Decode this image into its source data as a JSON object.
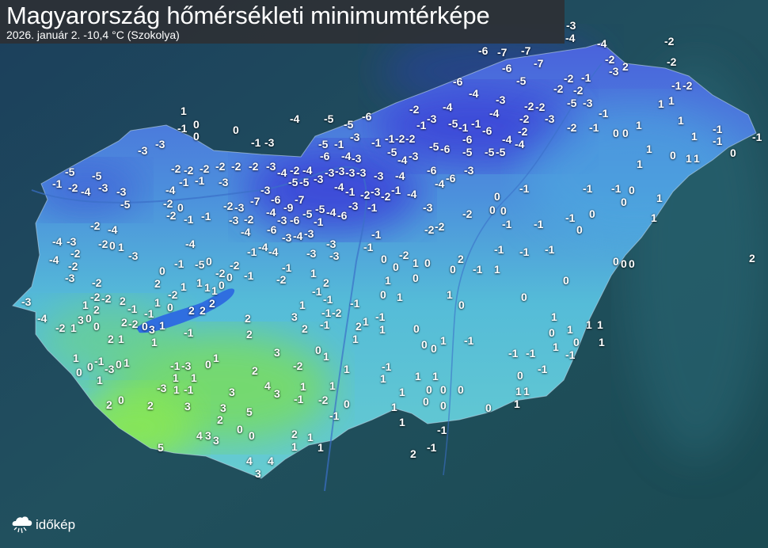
{
  "header": {
    "title": "Magyarország hőmérsékleti minimumtérképe",
    "subtitle": "2026. január 2.  -10,4 °C (Szokolya)"
  },
  "logo": {
    "text": "időkép",
    "icon": "cloud-sun-icon"
  },
  "colors": {
    "background": "#1d4656",
    "cold": "#3f4fd8",
    "mild": "#4fb4d6",
    "warm": "#7fe35a",
    "lake": "#2f6ee0",
    "label": "#ffffff"
  },
  "map": {
    "labels": [
      "-3",
      "-4",
      "-4",
      "-2",
      "-6",
      "-7",
      "-7",
      "-2",
      "-2",
      "-3",
      "2",
      "-6",
      "-7",
      "-6",
      "-5",
      "-2",
      "-1",
      "-2",
      "-2",
      "-2",
      "-1",
      "-4",
      "-3",
      "-5",
      "-3",
      "1",
      "1",
      "-4",
      "-2",
      "-2",
      "-2",
      "-1",
      "-3",
      "-5",
      "-1",
      "-4",
      "-2",
      "-3",
      "-4",
      "-5",
      "-5",
      "-6",
      "1",
      "-1",
      "0",
      "0",
      "0",
      "-1",
      "-3",
      "-3",
      "-3",
      "-5",
      "-5",
      "-1",
      "-2",
      "-4",
      "-3",
      "-3",
      "-5",
      "-2",
      "-2",
      "-2",
      "-2",
      "-2",
      "-2",
      "-3",
      "-1",
      "-1",
      "-3",
      "-4",
      "-2",
      "-2",
      "0",
      "-1",
      "-1",
      "-2",
      "-3",
      "-3",
      "-2",
      "-7",
      "-3",
      "-4",
      "-6",
      "-9",
      "-7",
      "-5",
      "-6",
      "-3",
      "-4",
      "-6",
      "-3",
      "-4",
      "-3",
      "-1",
      "-5",
      "-4",
      "-6",
      "-3",
      "-1",
      "-2",
      "-4",
      "-6",
      "-4",
      "-6",
      "-3",
      "-5",
      "-6",
      "-5",
      "-6",
      "-5",
      "-5",
      "-4",
      "-4",
      "-2",
      "-6",
      "-1",
      "-2",
      "-5",
      "-3",
      "-4",
      "-2",
      "-1",
      "-4",
      "-2",
      "-4",
      "-5",
      "-5",
      "-3",
      "-3",
      "-3",
      "-3",
      "-3",
      "-3",
      "-6",
      "-5",
      "-1",
      "-4",
      "-3",
      "-3",
      "-1",
      "-1",
      "-4",
      "-1",
      "-2",
      "-3",
      "-1",
      "-4",
      "-3",
      "-2",
      "-2",
      "-2",
      "-1",
      "-1",
      "0",
      "-2",
      "1",
      "0",
      "0",
      "2",
      "0",
      "-1",
      "1",
      "1",
      "0",
      "1",
      "0",
      "0",
      "1",
      "-1",
      "1",
      "0",
      "0",
      "1",
      "0",
      "-1",
      "-1",
      "-1",
      "1",
      "0",
      "1",
      "1",
      "1",
      "0",
      "1",
      "1",
      "-1",
      "-1",
      "0",
      "1",
      "1",
      "0",
      "1",
      "-1",
      "1",
      "1",
      "1",
      "1",
      "0",
      "0",
      "0",
      "1",
      "0",
      "0",
      "1",
      "-2",
      "1",
      "-1",
      "0",
      "1",
      "-1",
      "-1",
      "2",
      "1",
      "0",
      "0",
      "-1",
      "-2",
      "1",
      "1",
      "-1",
      "-1",
      "-1",
      "0",
      "1",
      "0",
      "1",
      "1",
      "1",
      "-1",
      "-1",
      "0",
      "0",
      "1",
      "-1",
      "0",
      "0",
      "0",
      "-1",
      "0",
      "1",
      "0",
      "-1",
      "-1",
      "-1",
      "-1",
      "-1",
      "0",
      "0",
      "0",
      "2",
      "0",
      "0",
      "-2",
      "-4",
      "-4",
      "-3",
      "-2",
      "-4",
      "-2",
      "-3",
      "-2",
      "0",
      "1",
      "-3",
      "-4",
      "-1",
      "0",
      "-5",
      "0",
      "-2",
      "-2",
      "-1",
      "-4",
      "-4",
      "-1",
      "-2",
      "-3",
      "-3",
      "-3",
      "-1",
      "1",
      "2",
      "-1",
      "-1",
      "1",
      "-1",
      "-1",
      "-2",
      "-1",
      "3",
      "2",
      "2",
      "1",
      "1",
      "-2",
      "-2",
      "-2",
      "1",
      "2",
      "2",
      "-1",
      "2",
      "1",
      "1",
      "1",
      "0",
      "0",
      "1",
      "-2",
      "1",
      "0",
      "2",
      "2",
      "2",
      "-1",
      "0",
      "3",
      "-4",
      "-3",
      "-2",
      "1",
      "0",
      "2",
      "-2",
      "0",
      "3",
      "1",
      "1",
      "-1",
      "2",
      "2",
      "2",
      "1",
      "3",
      "-2",
      "0",
      "1",
      "1",
      "-1",
      "-3",
      "0",
      "0",
      "1",
      "-3",
      "-1",
      "0",
      "1",
      "0",
      "1",
      "1",
      "2",
      "-3",
      "1",
      "-1",
      "3",
      "4",
      "3",
      "1",
      "-1",
      "0",
      "2",
      "2",
      "3",
      "3",
      "5",
      "2",
      "0",
      "0",
      "4",
      "3",
      "3",
      "2",
      "1",
      "1",
      "1",
      "5",
      "4",
      "4",
      "3",
      "1"
    ]
  }
}
